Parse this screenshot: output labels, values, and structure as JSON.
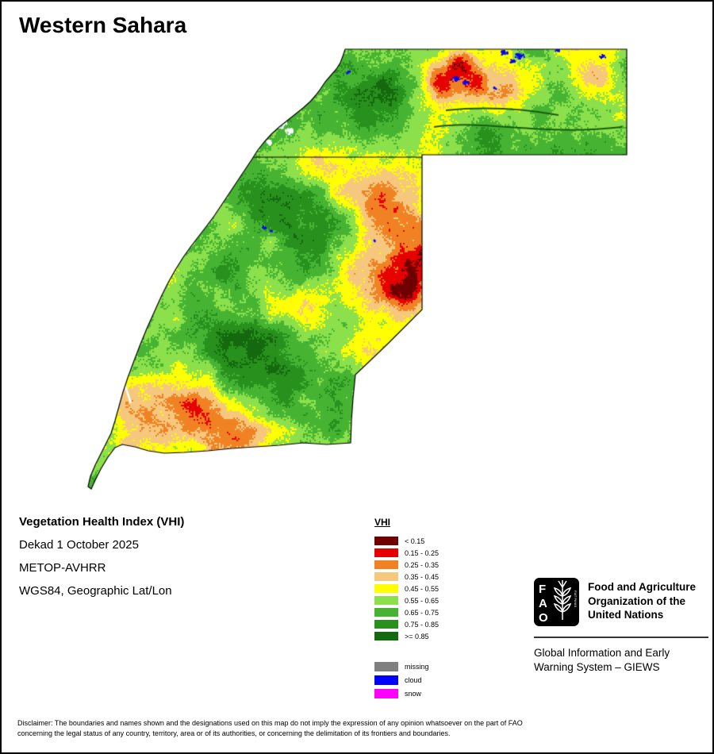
{
  "title": "Western Sahara",
  "info": {
    "line1": "Vegetation Health Index (VHI)",
    "line2": "Dekad 1 October 2025",
    "line3": "METOP-AVHRR",
    "line4": "WGS84, Geographic Lat/Lon"
  },
  "legend": {
    "title": "VHI",
    "classes": [
      {
        "label": "< 0.15",
        "color": "#700000"
      },
      {
        "label": "0.15 - 0.25",
        "color": "#e60000"
      },
      {
        "label": "0.25 - 0.35",
        "color": "#f08223"
      },
      {
        "label": "0.35 - 0.45",
        "color": "#f5c87d"
      },
      {
        "label": "0.45 - 0.55",
        "color": "#ffff00"
      },
      {
        "label": "0.55 - 0.65",
        "color": "#8ce04b"
      },
      {
        "label": "0.65 - 0.75",
        "color": "#46b432"
      },
      {
        "label": "0.75 - 0.85",
        "color": "#28911e"
      },
      {
        "label": ">= 0.85",
        "color": "#14690f"
      }
    ],
    "extras": [
      {
        "label": "missing",
        "color": "#808080"
      },
      {
        "label": "cloud",
        "color": "#0000ff"
      },
      {
        "label": "snow",
        "color": "#ff00ff"
      }
    ]
  },
  "fao": {
    "logo_letters": [
      "F",
      "A",
      "O"
    ],
    "motto": "FIAT PANIS",
    "org_name": "Food and Agriculture\nOrganization of the\nUnited Nations",
    "giews": "Global Information and Early\nWarning System – GIEWS"
  },
  "disclaimer": "Disclaimer: The boundaries and names shown and the designations used on this map do not imply the expression of any opinion whatsoever on the part of FAO\nconcerning the legal status of any country, territory, area or of its authorities, or concerning the delimitation of its frontiers and boundaries."
}
